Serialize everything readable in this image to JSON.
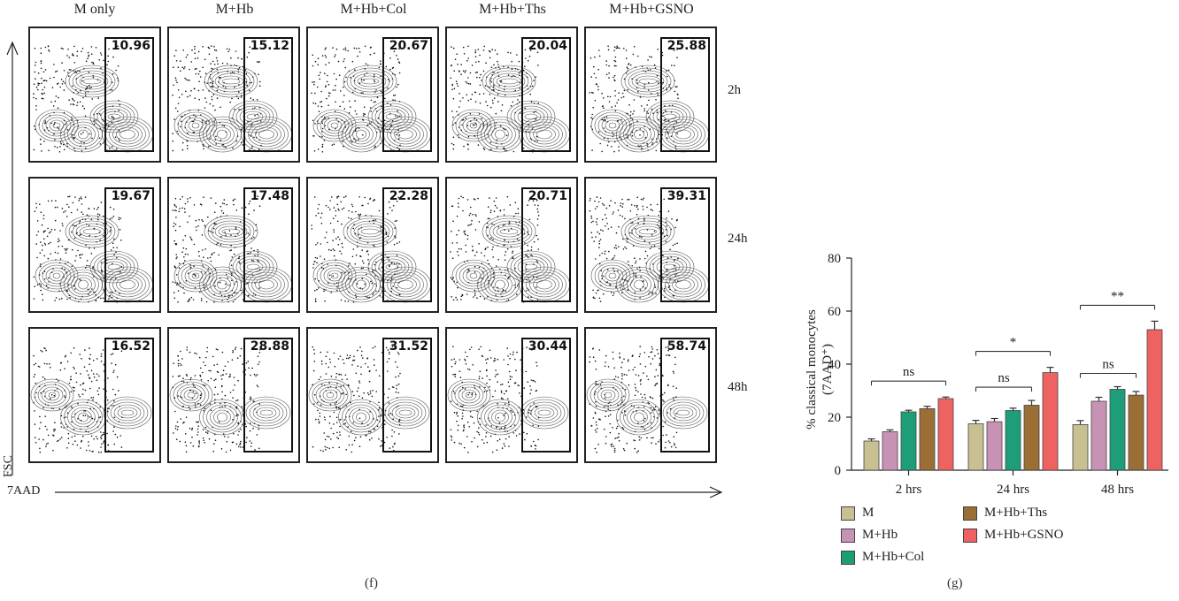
{
  "flow": {
    "columns": [
      "M only",
      "M+Hb",
      "M+Hb+Col",
      "M+Hb+Ths",
      "M+Hb+GSNO"
    ],
    "rows": [
      "2h",
      "24h",
      "48h"
    ],
    "values": [
      [
        "10.96",
        "15.12",
        "20.67",
        "20.04",
        "25.88"
      ],
      [
        "19.67",
        "17.48",
        "22.28",
        "20.71",
        "39.31"
      ],
      [
        "16.52",
        "28.88",
        "31.52",
        "30.44",
        "58.74"
      ]
    ],
    "y_axis_label": "FSC",
    "x_axis_label": "7AAD",
    "panel_label": "(f)"
  },
  "chart_data": {
    "type": "bar",
    "title": "",
    "ylabel_line1": "% classical monocytes",
    "ylabel_line2": "(7AAD⁺)",
    "xlabel": "",
    "ylim": [
      0,
      80
    ],
    "yticks": [
      "0",
      "20",
      "40",
      "60",
      "80"
    ],
    "categories": [
      "2 hrs",
      "24 hrs",
      "48 hrs"
    ],
    "series": [
      {
        "name": "M",
        "color": "#c8c092",
        "values": [
          11,
          17.5,
          17.2
        ],
        "errors": [
          0.8,
          1.3,
          1.5
        ]
      },
      {
        "name": "M+Hb",
        "color": "#c892b4",
        "values": [
          14.5,
          18.3,
          26
        ],
        "errors": [
          0.7,
          1.2,
          1.5
        ]
      },
      {
        "name": "M+Hb+Col",
        "color": "#1e9e78",
        "values": [
          22,
          22.5,
          30.5
        ],
        "errors": [
          0.6,
          0.9,
          1.0
        ]
      },
      {
        "name": "M+Hb+Ths",
        "color": "#9a6e34",
        "values": [
          23.2,
          24.5,
          28.3
        ],
        "errors": [
          0.9,
          1.8,
          1.4
        ]
      },
      {
        "name": "M+Hb+GSNO",
        "color": "#ef6262",
        "values": [
          27,
          36.8,
          53
        ],
        "errors": [
          0.6,
          2.0,
          3.2
        ]
      }
    ],
    "annotations": [
      {
        "text": "ns",
        "group": 0,
        "from": 0,
        "to": 4
      },
      {
        "text": "ns",
        "group": 1,
        "from": 0,
        "to": 3
      },
      {
        "text": "*",
        "group": 1,
        "from": 0,
        "to": 4
      },
      {
        "text": "ns",
        "group": 2,
        "from": 0,
        "to": 3
      },
      {
        "text": "**",
        "group": 2,
        "from": 0,
        "to": 4
      }
    ],
    "panel_label": "(g)"
  }
}
